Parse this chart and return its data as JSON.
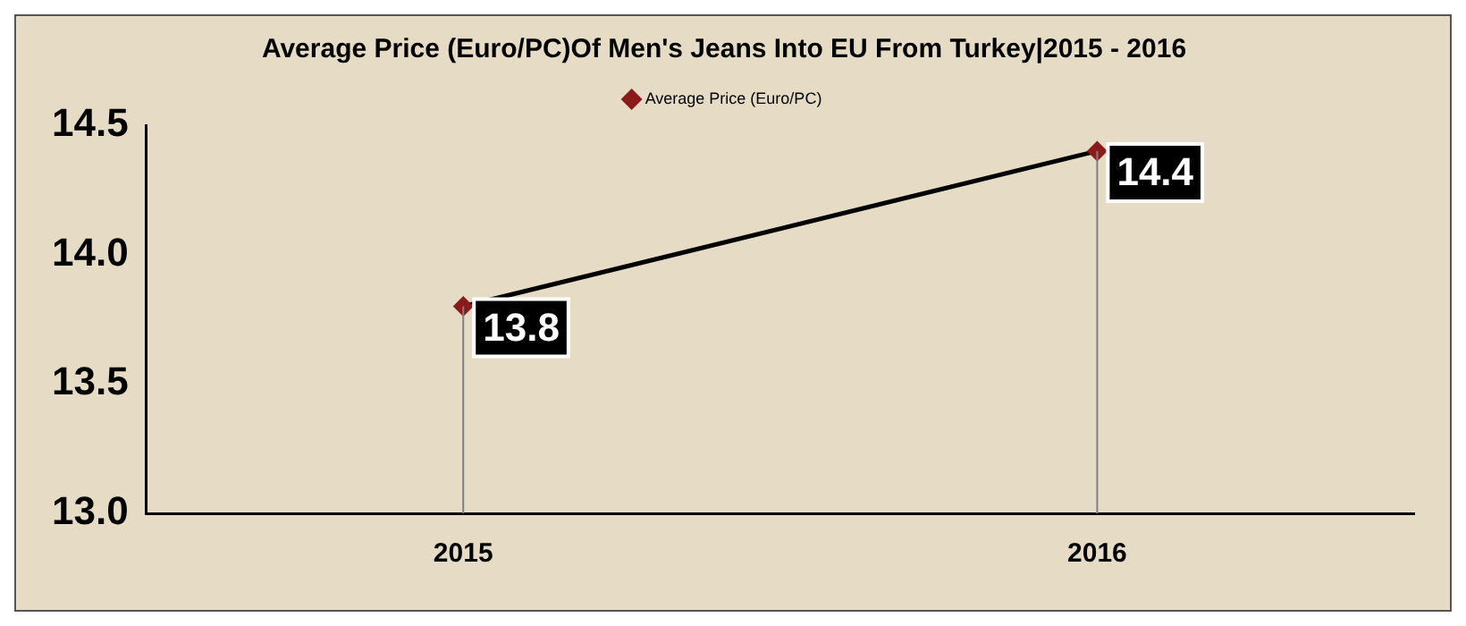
{
  "chart_data": {
    "type": "line",
    "title": "Average Price (Euro/PC)Of Men's Jeans Into EU From Turkey|2015 - 2016",
    "categories": [
      "2015",
      "2016"
    ],
    "series": [
      {
        "name": "Average Price (Euro/PC)",
        "color": "#000000",
        "colors": [
          "#8b1a1a",
          "#8b1a1a"
        ],
        "values": [
          13.8,
          14.4
        ]
      }
    ],
    "ylim": [
      13,
      14.5
    ],
    "yticks": [
      {
        "value": 13,
        "label": "13.0"
      },
      {
        "value": 13.5,
        "label": "13.5"
      },
      {
        "value": 14,
        "label": "14.0"
      },
      {
        "value": 14.5,
        "label": "14.5"
      }
    ],
    "grid": "x",
    "legend": "top",
    "marker": "diamond",
    "line_style": "solid",
    "data_labels": true
  }
}
